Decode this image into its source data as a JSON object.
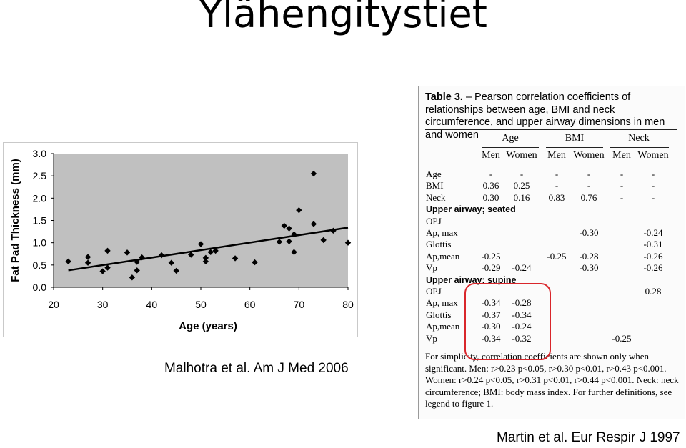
{
  "slide": {
    "title": "Ylähengitystiet",
    "citation_left": "Malhotra et al.  Am J Med 2006",
    "citation_right": "Martin et al. Eur Respir J 1997"
  },
  "colors": {
    "highlight": "#d9262b",
    "plot_bg": "#c0c0c0"
  },
  "chart_data": {
    "type": "scatter",
    "xlabel": "Age (years)",
    "ylabel": "Fat Pad Thickness (mm)",
    "xlim": [
      20,
      80
    ],
    "ylim": [
      0.0,
      3.0
    ],
    "x_ticks": [
      "20",
      "30",
      "40",
      "50",
      "60",
      "70",
      "80"
    ],
    "y_ticks": [
      "0.0",
      "0.5",
      "1.0",
      "1.5",
      "2.0",
      "2.5",
      "3.0"
    ],
    "grid": false,
    "trendline": {
      "x": [
        23,
        80
      ],
      "y": [
        0.38,
        1.34
      ]
    },
    "points": [
      [
        23,
        0.58
      ],
      [
        27,
        0.55
      ],
      [
        27,
        0.68
      ],
      [
        30,
        0.36
      ],
      [
        31,
        0.44
      ],
      [
        31,
        0.82
      ],
      [
        35,
        0.78
      ],
      [
        36,
        0.22
      ],
      [
        37,
        0.38
      ],
      [
        37,
        0.57
      ],
      [
        38,
        0.67
      ],
      [
        42,
        0.72
      ],
      [
        44,
        0.55
      ],
      [
        45,
        0.37
      ],
      [
        48,
        0.73
      ],
      [
        50,
        0.97
      ],
      [
        51,
        0.58
      ],
      [
        51,
        0.66
      ],
      [
        52,
        0.79
      ],
      [
        53,
        0.82
      ],
      [
        57,
        0.65
      ],
      [
        61,
        0.56
      ],
      [
        66,
        1.02
      ],
      [
        67,
        1.38
      ],
      [
        68,
        1.03
      ],
      [
        68,
        1.32
      ],
      [
        69,
        0.79
      ],
      [
        69,
        1.19
      ],
      [
        70,
        1.73
      ],
      [
        73,
        1.42
      ],
      [
        73,
        2.55
      ],
      [
        75,
        1.06
      ],
      [
        77,
        1.27
      ],
      [
        80,
        1.0
      ]
    ]
  },
  "table": {
    "caption_label": "Table 3.",
    "caption_text": " –  Pearson correlation coefficients of relationships between age, BMI and neck circumference, and upper airway dimensions in men and women",
    "groups": [
      "Age",
      "BMI",
      "Neck"
    ],
    "subheaders": [
      "Men",
      "Women",
      "Men",
      "Women",
      "Men",
      "Women"
    ],
    "rows": [
      {
        "label": "Age",
        "kind": "row",
        "cells": [
          "-",
          "-",
          "-",
          "-",
          "-",
          "-"
        ]
      },
      {
        "label": "BMI",
        "kind": "row",
        "cells": [
          "0.36",
          "0.25",
          "-",
          "-",
          "-",
          "-"
        ]
      },
      {
        "label": "Neck",
        "kind": "row",
        "cells": [
          "0.30",
          "0.16",
          "0.83",
          "0.76",
          "-",
          "-"
        ]
      },
      {
        "label": "Upper airway; seated",
        "kind": "section",
        "cells": []
      },
      {
        "label": "OPJ",
        "kind": "row",
        "cells": [
          "",
          "",
          "",
          "",
          "",
          ""
        ]
      },
      {
        "label": "Ap, max",
        "kind": "row",
        "cells": [
          "",
          "",
          "",
          "-0.30",
          "",
          "-0.24"
        ]
      },
      {
        "label": "Glottis",
        "kind": "row",
        "cells": [
          "",
          "",
          "",
          "",
          "",
          "-0.31"
        ]
      },
      {
        "label": "Ap,mean",
        "kind": "row",
        "cells": [
          "-0.25",
          "",
          "-0.25",
          "-0.28",
          "",
          "-0.26"
        ]
      },
      {
        "label": "Vp",
        "kind": "row",
        "cells": [
          "-0.29",
          "-0.24",
          "",
          "-0.30",
          "",
          "-0.26"
        ]
      },
      {
        "label": "Upper airway; supine",
        "kind": "section",
        "cells": []
      },
      {
        "label": "OPJ",
        "kind": "row",
        "cells": [
          "",
          "",
          "",
          "",
          "",
          "0.28"
        ]
      },
      {
        "label": "Ap, max",
        "kind": "row",
        "cells": [
          "-0.34",
          "-0.28",
          "",
          "",
          "",
          ""
        ]
      },
      {
        "label": "Glottis",
        "kind": "row",
        "cells": [
          "-0.37",
          "-0.34",
          "",
          "",
          "",
          ""
        ]
      },
      {
        "label": "Ap,mean",
        "kind": "row",
        "cells": [
          "-0.30",
          "-0.24",
          "",
          "",
          "",
          ""
        ]
      },
      {
        "label": "Vp",
        "kind": "row",
        "cells": [
          "-0.34",
          "-0.32",
          "",
          "",
          "-0.25",
          ""
        ]
      }
    ],
    "footnote": "For simplicity, correlation coefficients are shown only when significant. Men: r>0.23 p<0.05, r>0.30 p<0.01, r>0.43 p<0.001. Women: r>0.24 p<0.05, r>0.31 p<0.01, r>0.44 p<0.001. Neck: neck circumference; BMI: body mass index. For further definitions, see legend to figure 1."
  }
}
